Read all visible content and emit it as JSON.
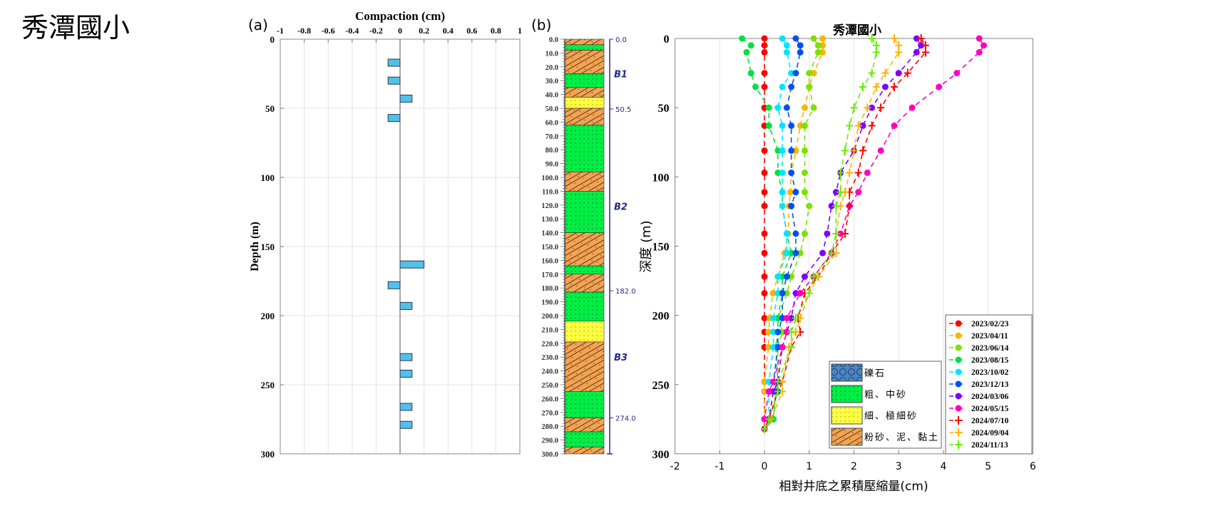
{
  "page_title": "秀潭國小",
  "chart_data": [
    {
      "type": "bar",
      "panel_label": "(a)",
      "xlabel": "Compaction (cm)",
      "ylabel": "Depth (m)",
      "xlim": [
        -1,
        1
      ],
      "ylim": [
        0,
        300
      ],
      "y_inverted": true,
      "x_axis_position": "top",
      "xticks": [
        "-1",
        "-0.8",
        "-0.6",
        "-0.4",
        "-0.2",
        "0",
        "0.2",
        "0.4",
        "0.6",
        "0.8",
        "1"
      ],
      "yticks": [
        "0",
        "50",
        "100",
        "150",
        "200",
        "250",
        "300"
      ],
      "grid": true,
      "bar_color": "#4fc1ea",
      "bars": [
        {
          "depth": 17,
          "value": -0.1
        },
        {
          "depth": 30,
          "value": -0.1
        },
        {
          "depth": 43,
          "value": 0.1
        },
        {
          "depth": 57,
          "value": -0.1
        },
        {
          "depth": 163,
          "value": 0.2
        },
        {
          "depth": 178,
          "value": -0.1
        },
        {
          "depth": 193,
          "value": 0.1
        },
        {
          "depth": 230,
          "value": 0.1
        },
        {
          "depth": 242,
          "value": 0.1
        },
        {
          "depth": 266,
          "value": 0.1
        },
        {
          "depth": 279,
          "value": 0.1
        }
      ]
    },
    {
      "type": "table",
      "panel_label": "(b)",
      "depth_ticks": [
        "0.0",
        "10.0",
        "20.0",
        "30.0",
        "40.0",
        "50.0",
        "60.0",
        "70.0",
        "80.0",
        "90.0",
        "100.0",
        "110.0",
        "120.0",
        "130.0",
        "140.0",
        "150.0",
        "160.0",
        "170.0",
        "180.0",
        "190.0",
        "200.0",
        "210.0",
        "220.0",
        "230.0",
        "240.0",
        "250.0",
        "260.0",
        "270.0",
        "280.0",
        "290.0",
        "300.0"
      ],
      "ylim": [
        0,
        300
      ],
      "layers": [
        {
          "top": 0,
          "bottom": 4,
          "type": "silt"
        },
        {
          "top": 4,
          "bottom": 8,
          "type": "sand"
        },
        {
          "top": 8,
          "bottom": 25,
          "type": "silt"
        },
        {
          "top": 25,
          "bottom": 35,
          "type": "sand"
        },
        {
          "top": 35,
          "bottom": 42,
          "type": "silt"
        },
        {
          "top": 42,
          "bottom": 50,
          "type": "fine"
        },
        {
          "top": 50,
          "bottom": 62,
          "type": "silt"
        },
        {
          "top": 62,
          "bottom": 96,
          "type": "sand"
        },
        {
          "top": 96,
          "bottom": 110,
          "type": "silt"
        },
        {
          "top": 110,
          "bottom": 140,
          "type": "sand"
        },
        {
          "top": 140,
          "bottom": 164,
          "type": "silt"
        },
        {
          "top": 164,
          "bottom": 170,
          "type": "sand"
        },
        {
          "top": 170,
          "bottom": 183,
          "type": "silt"
        },
        {
          "top": 183,
          "bottom": 204,
          "type": "sand"
        },
        {
          "top": 204,
          "bottom": 219,
          "type": "fine"
        },
        {
          "top": 219,
          "bottom": 255,
          "type": "silt"
        },
        {
          "top": 255,
          "bottom": 274,
          "type": "sand"
        },
        {
          "top": 274,
          "bottom": 284,
          "type": "silt"
        },
        {
          "top": 284,
          "bottom": 295,
          "type": "sand"
        },
        {
          "top": 295,
          "bottom": 300,
          "type": "silt"
        }
      ],
      "boundaries": [
        {
          "depth": 0,
          "label": "0.0"
        },
        {
          "depth": 50.5,
          "label": "50.5"
        },
        {
          "depth": 182,
          "label": "182.0"
        },
        {
          "depth": 274,
          "label": "274.0"
        }
      ],
      "units": [
        {
          "depth": 25,
          "label": "B1"
        },
        {
          "depth": 121,
          "label": "B2"
        },
        {
          "depth": 230,
          "label": "B3"
        }
      ]
    },
    {
      "type": "line",
      "title": "秀潭國小",
      "xlabel": "相對井底之累積壓縮量(cm)",
      "ylabel": "深度 (m)",
      "xlim": [
        -2,
        6
      ],
      "ylim": [
        0,
        300
      ],
      "y_inverted": true,
      "xticks": [
        "-2",
        "-1",
        "0",
        "1",
        "2",
        "3",
        "4",
        "5",
        "6"
      ],
      "yticks": [
        "0",
        "50",
        "100",
        "150",
        "200",
        "250",
        "300"
      ],
      "grid": true,
      "legend_position": "bottom-right",
      "depths": [
        0,
        5,
        10,
        25,
        35,
        50,
        63,
        81,
        97,
        111,
        121,
        141,
        155,
        172,
        184,
        202,
        212,
        223,
        248,
        255,
        275,
        282
      ],
      "series": [
        {
          "name": "2023/02/23",
          "color": "#ff0000",
          "marker": "circle",
          "values": [
            0,
            0,
            0,
            0,
            0,
            0,
            0,
            0,
            0,
            0,
            0,
            0,
            0,
            0,
            0,
            0,
            0,
            0,
            0,
            0,
            0,
            0
          ]
        },
        {
          "name": "2023/04/11",
          "color": "#ffb300",
          "marker": "circle",
          "values": [
            1.3,
            1.3,
            1.3,
            1.1,
            1.0,
            0.9,
            0.8,
            0.7,
            0.6,
            0.58,
            0.55,
            0.53,
            0.45,
            0.3,
            0.19,
            0.12,
            0.09,
            0.09,
            0,
            0,
            0,
            0
          ]
        },
        {
          "name": "2023/06/14",
          "color": "#7ee000",
          "marker": "circle",
          "values": [
            1.1,
            1.2,
            1.2,
            1.0,
            1.0,
            1.1,
            0.9,
            0.9,
            0.9,
            0.9,
            1.0,
            0.9,
            0.8,
            0.6,
            0.5,
            0.3,
            0.4,
            0.3,
            0.3,
            0.25,
            0.2,
            0
          ]
        },
        {
          "name": "2023/08/15",
          "color": "#00e040",
          "marker": "circle",
          "values": [
            -0.5,
            -0.3,
            -0.4,
            -0.3,
            -0.2,
            0.1,
            0.1,
            0.3,
            0.3,
            0.4,
            0.4,
            0.5,
            0.6,
            0.4,
            0.4,
            0.3,
            0.3,
            0.25,
            0.3,
            0.25,
            0.2,
            0
          ]
        },
        {
          "name": "2023/10/02",
          "color": "#00e5ff",
          "marker": "circle",
          "values": [
            0.4,
            0.5,
            0.5,
            0.6,
            0.4,
            0.3,
            0.4,
            0.4,
            0.4,
            0.4,
            0.4,
            0.5,
            0.5,
            0.3,
            0.3,
            0.2,
            0.2,
            0.2,
            0.1,
            0.1,
            0.1,
            0
          ]
        },
        {
          "name": "2023/12/13",
          "color": "#0050f0",
          "marker": "circle",
          "values": [
            0.7,
            0.8,
            0.8,
            0.7,
            0.6,
            0.5,
            0.6,
            0.6,
            0.6,
            0.7,
            0.6,
            0.7,
            0.7,
            0.5,
            0.4,
            0.4,
            0.3,
            0.3,
            0.2,
            0.3,
            0.1,
            0
          ]
        },
        {
          "name": "2024/03/06",
          "color": "#8000ff",
          "marker": "circle",
          "values": [
            3.4,
            3.5,
            3.4,
            3.0,
            2.7,
            2.4,
            2.2,
            2.0,
            1.7,
            1.6,
            1.5,
            1.4,
            1.3,
            0.9,
            0.7,
            0.6,
            0.5,
            0.4,
            0.3,
            0.2,
            0.1,
            0
          ]
        },
        {
          "name": "2024/05/15",
          "color": "#ff00c0",
          "marker": "circle",
          "values": [
            4.8,
            4.9,
            4.8,
            4.3,
            3.9,
            3.3,
            2.9,
            2.6,
            2.3,
            2.1,
            1.9,
            1.7,
            1.5,
            1.1,
            0.8,
            0.5,
            0.5,
            0.4,
            0.2,
            0.1,
            0,
            0
          ]
        },
        {
          "name": "2024/07/10",
          "color": "#ff0000",
          "marker": "plus",
          "values": [
            3.5,
            3.6,
            3.6,
            3.2,
            2.9,
            2.6,
            2.4,
            2.2,
            2.1,
            1.9,
            1.9,
            1.8,
            1.5,
            1.2,
            0.9,
            0.75,
            0.8,
            0.6,
            0.4,
            0.3,
            0.1,
            0
          ]
        },
        {
          "name": "2024/09/04",
          "color": "#ffb300",
          "marker": "plus",
          "values": [
            2.9,
            3.0,
            3.0,
            2.7,
            2.5,
            2.3,
            2.1,
            2.0,
            1.9,
            1.8,
            1.7,
            1.6,
            1.6,
            1.2,
            1.0,
            0.8,
            0.7,
            0.55,
            0.4,
            0.4,
            0.15,
            0
          ]
        },
        {
          "name": "2024/11/13",
          "color": "#66ee00",
          "marker": "plus",
          "values": [
            2.4,
            2.5,
            2.5,
            2.4,
            2.2,
            2.0,
            1.9,
            1.8,
            1.7,
            1.7,
            1.6,
            1.6,
            1.5,
            1.1,
            1.0,
            0.7,
            0.6,
            0.6,
            0.3,
            0.3,
            0.1,
            0
          ]
        }
      ]
    }
  ],
  "lithology_legend": [
    {
      "type": "gravel",
      "label": "礫石"
    },
    {
      "type": "sand",
      "label": "粗、中砂"
    },
    {
      "type": "fine",
      "label": "細、極細砂"
    },
    {
      "type": "silt",
      "label": "粉砂、泥、黏土"
    }
  ]
}
